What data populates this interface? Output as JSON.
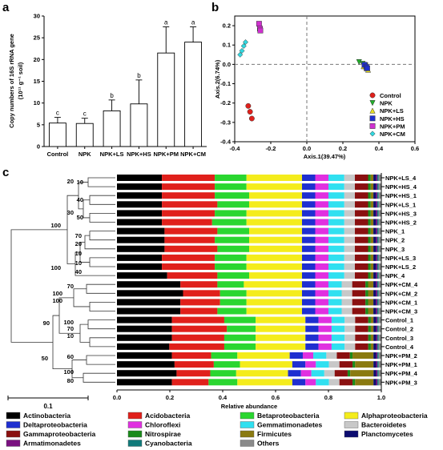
{
  "chart_data": [
    {
      "panel": "a",
      "type": "bar",
      "ylabel": "Copy numbers of 16S rRNA gene",
      "ylabel2": "(10¹¹ g⁻¹ soil)",
      "categories": [
        "Control",
        "NPK",
        "NPK+LS",
        "NPK+HS",
        "NPK+PM",
        "NPK+CM"
      ],
      "values": [
        5.4,
        5.3,
        8.2,
        9.8,
        21.5,
        24.0
      ],
      "errors": [
        1.3,
        1.2,
        2.5,
        5.5,
        6.0,
        3.5
      ],
      "letters": [
        "c",
        "c",
        "b",
        "b",
        "a",
        "a"
      ],
      "ylim": [
        0,
        30
      ],
      "yticks": [
        "0",
        "5",
        "10",
        "15",
        "20",
        "25",
        "30"
      ],
      "bar_color": "#ffffff"
    },
    {
      "panel": "b",
      "type": "scatter",
      "xlabel": "Axis.1(39.47%)",
      "ylabel": "Axis.2(6.74%)",
      "xlim": [
        -0.4,
        0.6
      ],
      "ylim": [
        -0.4,
        0.25
      ],
      "xticks": [
        "-0.4",
        "-0.2",
        "0.0",
        "0.2",
        "0.4",
        "0.6"
      ],
      "yticks": [
        "-0.4",
        "-0.3",
        "-0.2",
        "-0.1",
        "0.0",
        "0.1",
        "0.2"
      ],
      "series": [
        {
          "name": "Control",
          "color": "#e0201b",
          "marker": "circle",
          "points": [
            [
              -0.325,
              -0.215
            ],
            [
              -0.315,
              -0.245
            ],
            [
              -0.305,
              -0.28
            ]
          ]
        },
        {
          "name": "NPK",
          "color": "#22b02a",
          "marker": "triangle-down",
          "points": [
            [
              0.29,
              0.012
            ],
            [
              0.31,
              0.003
            ],
            [
              0.325,
              -0.005
            ]
          ]
        },
        {
          "name": "NPK+LS",
          "color": "#e8e020",
          "marker": "triangle-up",
          "points": [
            [
              0.315,
              -0.01
            ],
            [
              0.33,
              -0.02
            ],
            [
              0.34,
              -0.028
            ]
          ]
        },
        {
          "name": "NPK+HS",
          "color": "#1f2fd0",
          "marker": "square",
          "points": [
            [
              0.32,
              -0.002
            ],
            [
              0.33,
              -0.012
            ],
            [
              0.335,
              -0.02
            ]
          ]
        },
        {
          "name": "NPK+PM",
          "color": "#d030d0",
          "marker": "square",
          "points": [
            [
              -0.265,
              0.21
            ],
            [
              -0.26,
              0.185
            ],
            [
              -0.258,
              0.175
            ]
          ]
        },
        {
          "name": "NPK+CM",
          "color": "#30d8e0",
          "marker": "diamond",
          "points": [
            [
              -0.34,
              0.115
            ],
            [
              -0.35,
              0.095
            ],
            [
              -0.36,
              0.07
            ],
            [
              -0.37,
              0.05
            ]
          ]
        }
      ]
    },
    {
      "panel": "c",
      "type": "bar",
      "orientation": "horizontal-stacked",
      "xlabel": "Relative abundance",
      "xlim": [
        0,
        1
      ],
      "xticks": [
        "0.0",
        "0.2",
        "0.4",
        "0.6",
        "0.8",
        "1.0"
      ],
      "scale_bar_label": "0.1",
      "categories": [
        "NPK+LS_4",
        "NPK+HS_4",
        "NPK+HS_1",
        "NPK+LS_1",
        "NPK+HS_3",
        "NPK+HS_2",
        "NPK_1",
        "NPK_2",
        "NPK_3",
        "NPK+LS_3",
        "NPK+LS_2",
        "NPK_4",
        "NPK+CM_4",
        "NPK+CM_2",
        "NPK+CM_1",
        "NPK+CM_3",
        "Control_1",
        "Control_2",
        "Control_3",
        "Control_4",
        "NPK+PM_2",
        "NPK+PM_1",
        "NPK+PM_4",
        "NPK+PM_3"
      ],
      "taxa": [
        "Actinobacteria",
        "Acidobacteria",
        "Betaproteobacteria",
        "Alphaproteobacteria",
        "Deltaproteobacteria",
        "Chloroflexi",
        "Gemmatimonadetes",
        "Bacteroidetes",
        "Gammaproteobacteria",
        "Nitrospirae",
        "Firmicutes",
        "Planctomycetes",
        "Armatimonadetes",
        "Cyanobacteria",
        "Others"
      ],
      "colors": [
        "#000000",
        "#e0201b",
        "#2ad630",
        "#f4ec1c",
        "#1f2fd0",
        "#e030e0",
        "#30e0f0",
        "#c8c8c8",
        "#8a1010",
        "#1a8a1a",
        "#8a7a10",
        "#0c0c70",
        "#7a1080",
        "#107a7a",
        "#8a8a8a"
      ],
      "values": [
        [
          0.17,
          0.2,
          0.12,
          0.21,
          0.05,
          0.05,
          0.06,
          0.04,
          0.05,
          0.01,
          0.01,
          0.01,
          0.005,
          0.005,
          0.01
        ],
        [
          0.17,
          0.2,
          0.12,
          0.21,
          0.05,
          0.05,
          0.06,
          0.04,
          0.05,
          0.01,
          0.01,
          0.01,
          0.005,
          0.005,
          0.01
        ],
        [
          0.17,
          0.2,
          0.13,
          0.2,
          0.05,
          0.05,
          0.06,
          0.04,
          0.05,
          0.01,
          0.01,
          0.01,
          0.005,
          0.005,
          0.01
        ],
        [
          0.17,
          0.21,
          0.12,
          0.2,
          0.05,
          0.05,
          0.06,
          0.04,
          0.05,
          0.01,
          0.01,
          0.01,
          0.005,
          0.005,
          0.01
        ],
        [
          0.17,
          0.2,
          0.12,
          0.21,
          0.05,
          0.05,
          0.06,
          0.04,
          0.05,
          0.01,
          0.01,
          0.01,
          0.005,
          0.005,
          0.01
        ],
        [
          0.17,
          0.19,
          0.13,
          0.21,
          0.05,
          0.05,
          0.06,
          0.04,
          0.05,
          0.01,
          0.01,
          0.01,
          0.005,
          0.005,
          0.01
        ],
        [
          0.18,
          0.2,
          0.12,
          0.2,
          0.05,
          0.05,
          0.06,
          0.04,
          0.05,
          0.01,
          0.01,
          0.01,
          0.005,
          0.005,
          0.01
        ],
        [
          0.18,
          0.19,
          0.13,
          0.2,
          0.05,
          0.05,
          0.06,
          0.04,
          0.05,
          0.01,
          0.01,
          0.01,
          0.005,
          0.005,
          0.01
        ],
        [
          0.18,
          0.2,
          0.12,
          0.2,
          0.05,
          0.05,
          0.06,
          0.04,
          0.05,
          0.01,
          0.01,
          0.01,
          0.005,
          0.005,
          0.01
        ],
        [
          0.17,
          0.2,
          0.12,
          0.21,
          0.05,
          0.05,
          0.06,
          0.04,
          0.05,
          0.01,
          0.01,
          0.01,
          0.005,
          0.005,
          0.01
        ],
        [
          0.17,
          0.2,
          0.12,
          0.21,
          0.05,
          0.05,
          0.06,
          0.04,
          0.05,
          0.01,
          0.01,
          0.01,
          0.005,
          0.005,
          0.01
        ],
        [
          0.19,
          0.19,
          0.12,
          0.2,
          0.05,
          0.05,
          0.06,
          0.04,
          0.05,
          0.01,
          0.01,
          0.01,
          0.005,
          0.005,
          0.01
        ],
        [
          0.24,
          0.14,
          0.1,
          0.22,
          0.05,
          0.05,
          0.05,
          0.04,
          0.05,
          0.01,
          0.02,
          0.01,
          0.005,
          0.005,
          0.01
        ],
        [
          0.25,
          0.14,
          0.1,
          0.21,
          0.05,
          0.05,
          0.05,
          0.04,
          0.05,
          0.01,
          0.02,
          0.01,
          0.005,
          0.005,
          0.01
        ],
        [
          0.24,
          0.15,
          0.1,
          0.21,
          0.05,
          0.05,
          0.05,
          0.04,
          0.05,
          0.01,
          0.02,
          0.01,
          0.005,
          0.005,
          0.01
        ],
        [
          0.24,
          0.14,
          0.11,
          0.21,
          0.05,
          0.05,
          0.05,
          0.04,
          0.05,
          0.01,
          0.02,
          0.01,
          0.005,
          0.005,
          0.01
        ],
        [
          0.21,
          0.2,
          0.12,
          0.19,
          0.05,
          0.05,
          0.05,
          0.04,
          0.05,
          0.01,
          0.01,
          0.01,
          0.005,
          0.005,
          0.01
        ],
        [
          0.21,
          0.21,
          0.11,
          0.19,
          0.05,
          0.05,
          0.05,
          0.04,
          0.05,
          0.01,
          0.01,
          0.01,
          0.005,
          0.005,
          0.01
        ],
        [
          0.21,
          0.2,
          0.12,
          0.19,
          0.05,
          0.05,
          0.05,
          0.04,
          0.05,
          0.01,
          0.01,
          0.01,
          0.005,
          0.005,
          0.01
        ],
        [
          0.2,
          0.21,
          0.12,
          0.19,
          0.05,
          0.05,
          0.05,
          0.04,
          0.05,
          0.01,
          0.01,
          0.01,
          0.005,
          0.005,
          0.01
        ],
        [
          0.21,
          0.15,
          0.1,
          0.2,
          0.05,
          0.04,
          0.05,
          0.04,
          0.05,
          0.01,
          0.08,
          0.01,
          0.005,
          0.005,
          0.01
        ],
        [
          0.22,
          0.15,
          0.1,
          0.2,
          0.05,
          0.04,
          0.05,
          0.04,
          0.05,
          0.01,
          0.07,
          0.01,
          0.005,
          0.005,
          0.01
        ],
        [
          0.23,
          0.13,
          0.1,
          0.2,
          0.05,
          0.04,
          0.05,
          0.04,
          0.05,
          0.01,
          0.09,
          0.01,
          0.005,
          0.005,
          0.01
        ],
        [
          0.21,
          0.14,
          0.11,
          0.21,
          0.05,
          0.04,
          0.05,
          0.04,
          0.05,
          0.01,
          0.07,
          0.01,
          0.005,
          0.005,
          0.01
        ]
      ],
      "dendrogram_support": [
        "20",
        "40",
        "10",
        "30",
        "50",
        "100",
        "70",
        "20",
        "10",
        "10",
        "40",
        "100",
        "70",
        "100",
        "100",
        "100",
        "70",
        "90",
        "10",
        "60",
        "50",
        "100",
        "80"
      ]
    }
  ],
  "labels": {
    "a": "a",
    "b": "b",
    "c": "c"
  }
}
